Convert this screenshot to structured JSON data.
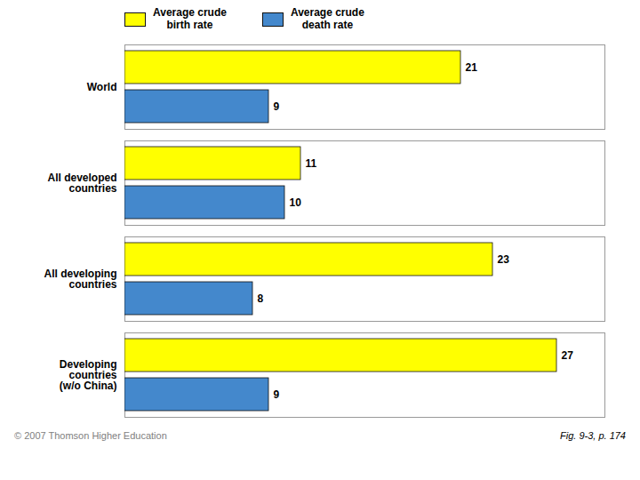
{
  "chart_data": {
    "type": "bar",
    "orientation": "horizontal",
    "categories": [
      "World",
      "All developed\ncountries",
      "All developing\ncountries",
      "Developing\ncountries\n(w/o China)"
    ],
    "series": [
      {
        "name": "Average crude\nbirth rate",
        "color": "#FFFF00",
        "values": [
          21,
          11,
          23,
          27
        ]
      },
      {
        "name": "Average crude\ndeath rate",
        "color": "#4488CC",
        "values": [
          9,
          10,
          8,
          9
        ]
      }
    ],
    "xlim": [
      0,
      30
    ],
    "data_labels": true,
    "tick_labels": "y",
    "legend": "top",
    "annotations": [
      "© 2007 Thomson Higher Education",
      "Fig. 9-3, p. 174"
    ]
  }
}
